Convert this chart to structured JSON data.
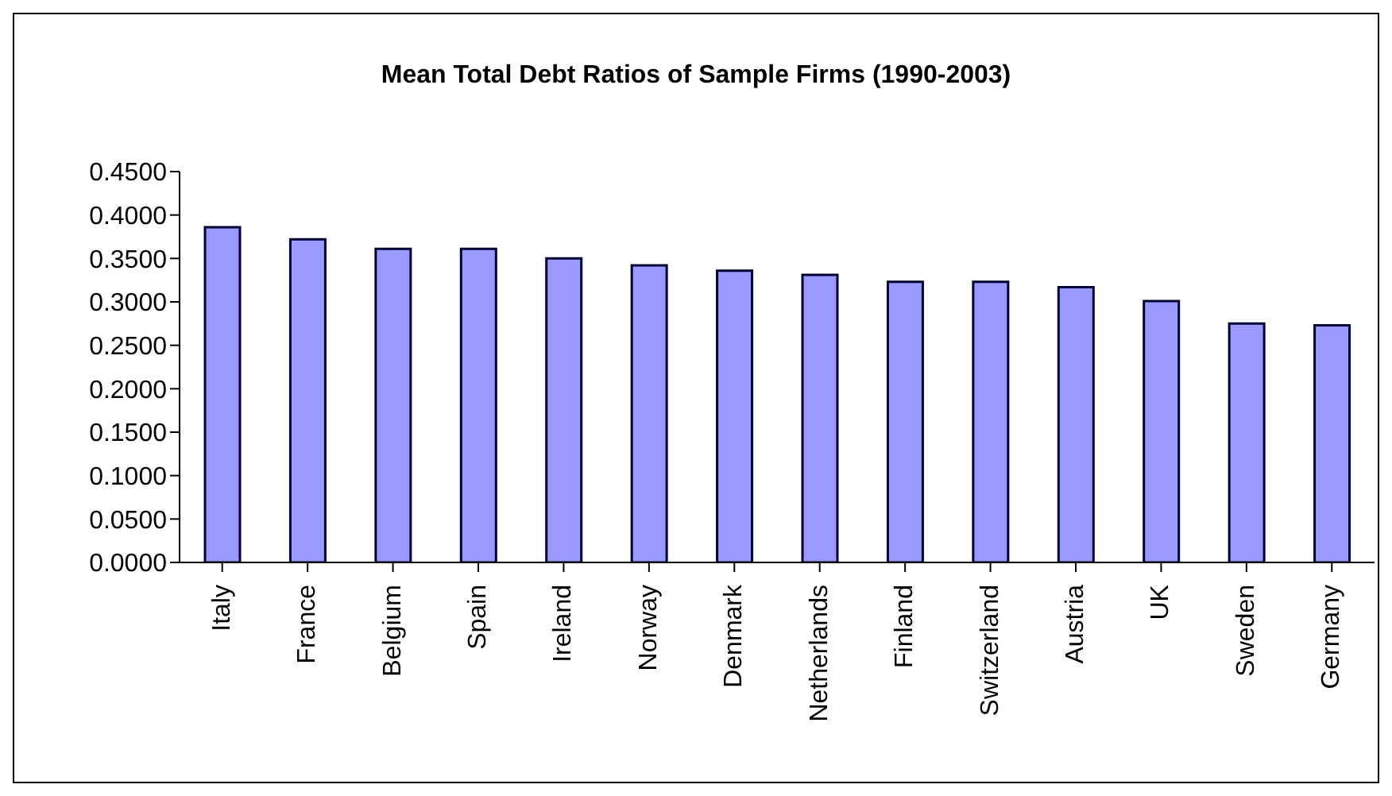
{
  "chart_data": {
    "type": "bar",
    "title": "Mean Total Debt Ratios of Sample Firms (1990-2003)",
    "categories": [
      "Italy",
      "France",
      "Belgium",
      "Spain",
      "Ireland",
      "Norway",
      "Denmark",
      "Netherlands",
      "Finland",
      "Switzerland",
      "Austria",
      "UK",
      "Sweden",
      "Germany"
    ],
    "values": [
      0.386,
      0.372,
      0.361,
      0.361,
      0.35,
      0.342,
      0.336,
      0.331,
      0.323,
      0.323,
      0.317,
      0.301,
      0.275,
      0.273
    ],
    "color": "#9999ff",
    "ylim": [
      0,
      0.45
    ],
    "yticks": [
      {
        "value": 0,
        "label": "0.0000"
      },
      {
        "value": 0.05,
        "label": "0.0500"
      },
      {
        "value": 0.1,
        "label": "0.1000"
      },
      {
        "value": 0.15,
        "label": "0.1500"
      },
      {
        "value": 0.2,
        "label": "0.2000"
      },
      {
        "value": 0.25,
        "label": "0.2500"
      },
      {
        "value": 0.3,
        "label": "0.3000"
      },
      {
        "value": 0.35,
        "label": "0.3500"
      },
      {
        "value": 0.4,
        "label": "0.4000"
      },
      {
        "value": 0.45,
        "label": "0.4500"
      }
    ],
    "grid": false,
    "legend": false
  }
}
